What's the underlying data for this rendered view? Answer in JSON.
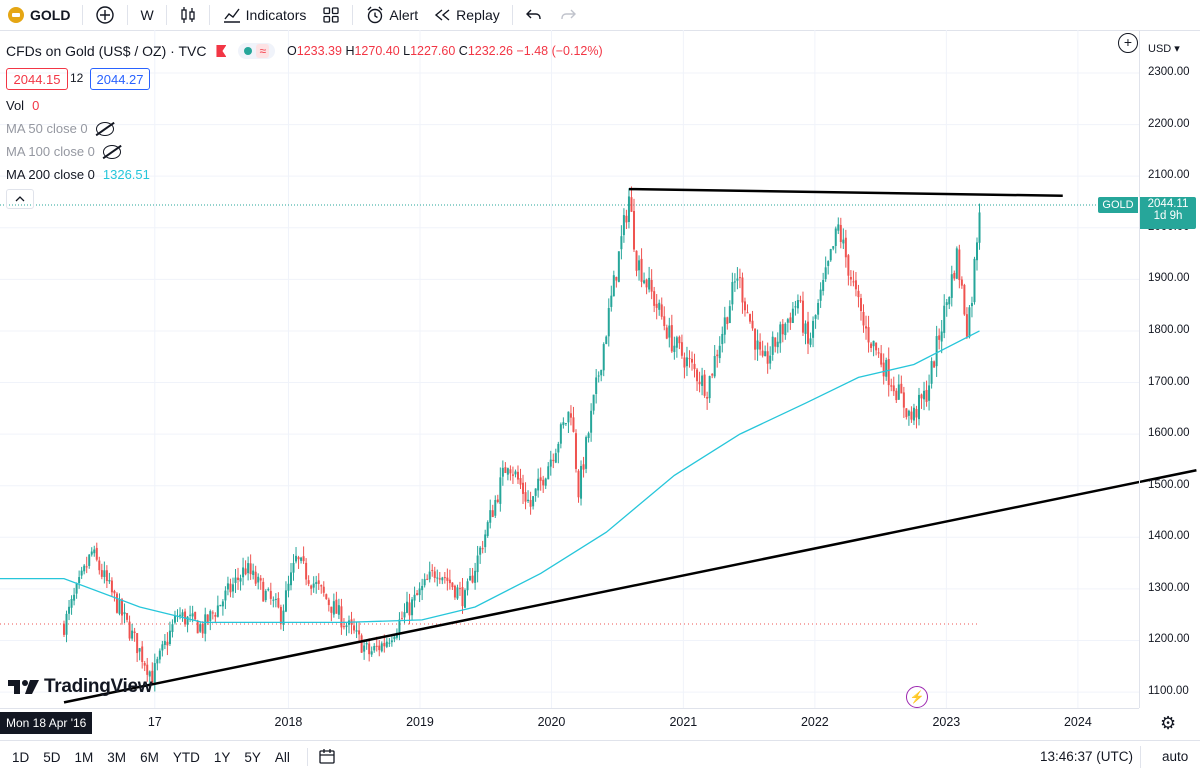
{
  "toolbar": {
    "symbol": "GOLD",
    "interval": "W",
    "indicators_label": "Indicators",
    "alert_label": "Alert",
    "replay_label": "Replay"
  },
  "legend": {
    "title": "CFDs on Gold (US$ / OZ) · TVC",
    "o_label": "O",
    "o_value": "1233.39",
    "h_label": "H",
    "h_value": "1270.40",
    "l_label": "L",
    "l_value": "1227.60",
    "c_label": "C",
    "c_value": "1232.26",
    "change": "−1.48 (−0.12%)",
    "bid": "2044.15",
    "spread": "12",
    "ask": "2044.27"
  },
  "indicators": {
    "vol_label": "Vol",
    "vol_value": "0",
    "ma50_label": "MA 50 close 0",
    "ma100_label": "MA 100 close 0",
    "ma200_label": "MA 200 close 0",
    "ma200_value": "1326.51"
  },
  "price_axis": {
    "currency": "USD",
    "ticks": [
      "2300.00",
      "2200.00",
      "2100.00",
      "2000.00",
      "1900.00",
      "1800.00",
      "1700.00",
      "1600.00",
      "1500.00",
      "1400.00",
      "1300.00",
      "1200.00",
      "1100.00"
    ],
    "last_symbol": "GOLD",
    "last_price": "2044.11",
    "countdown": "1d 9h"
  },
  "time_axis": {
    "ticks": [
      "17",
      "2018",
      "2019",
      "2020",
      "2021",
      "2022",
      "2023",
      "2024"
    ],
    "crosshair_label": "Mon 18 Apr '16"
  },
  "bottom": {
    "ranges": [
      "1D",
      "5D",
      "1M",
      "3M",
      "6M",
      "YTD",
      "1Y",
      "5Y",
      "All"
    ],
    "clock": "13:46:37 (UTC)",
    "auto_label": "auto"
  },
  "brand": {
    "name": "TradingView"
  },
  "colors": {
    "up": "#26a69a",
    "down": "#ef5350",
    "ma": "#26c6da",
    "accent": "#2962ff"
  },
  "chart_data": {
    "type": "candlestick",
    "interval": "W",
    "ylim": [
      1060,
      2360
    ],
    "anchors": [
      [
        "2016-04-18",
        1230
      ],
      [
        "2016-07-04",
        1370
      ],
      [
        "2016-12-19",
        1130
      ],
      [
        "2017-02-27",
        1250
      ],
      [
        "2017-05-08",
        1225
      ],
      [
        "2017-09-04",
        1340
      ],
      [
        "2017-12-11",
        1250
      ],
      [
        "2018-01-22",
        1355
      ],
      [
        "2018-08-13",
        1175
      ],
      [
        "2018-09-24",
        1195
      ],
      [
        "2019-02-18",
        1340
      ],
      [
        "2019-05-06",
        1280
      ],
      [
        "2019-09-02",
        1550
      ],
      [
        "2019-11-04",
        1460
      ],
      [
        "2020-02-24",
        1650
      ],
      [
        "2020-03-16",
        1490
      ],
      [
        "2020-08-03",
        2060
      ],
      [
        "2020-08-24",
        1940
      ],
      [
        "2020-11-30",
        1780
      ],
      [
        "2021-03-08",
        1690
      ],
      [
        "2021-05-31",
        1910
      ],
      [
        "2021-08-09",
        1730
      ],
      [
        "2021-11-15",
        1860
      ],
      [
        "2021-12-13",
        1770
      ],
      [
        "2022-03-07",
        2000
      ],
      [
        "2022-05-16",
        1810
      ],
      [
        "2022-09-26",
        1630
      ],
      [
        "2022-11-07",
        1680
      ],
      [
        "2023-01-30",
        1945
      ],
      [
        "2023-02-27",
        1810
      ],
      [
        "2023-03-13",
        1870
      ],
      [
        "2023-04-03",
        2044
      ]
    ],
    "ma200": [
      [
        "2016-04-18",
        1320
      ],
      [
        "2016-11-14",
        1265
      ],
      [
        "2017-05-08",
        1235
      ],
      [
        "2018-06-04",
        1235
      ],
      [
        "2019-01-07",
        1240
      ],
      [
        "2019-06-03",
        1265
      ],
      [
        "2019-12-02",
        1330
      ],
      [
        "2020-06-01",
        1410
      ],
      [
        "2020-12-07",
        1520
      ],
      [
        "2021-06-07",
        1600
      ],
      [
        "2021-12-06",
        1660
      ],
      [
        "2022-05-02",
        1710
      ],
      [
        "2022-10-03",
        1735
      ],
      [
        "2023-04-03",
        1800
      ]
    ],
    "trendlines": [
      {
        "from": [
          "2020-08-03",
          2075
        ],
        "to": [
          "2023-11-20",
          2062
        ]
      },
      {
        "from": [
          "2016-04-18",
          1080
        ],
        "to": [
          "2024-11-25",
          1530
        ]
      }
    ],
    "hlines": [
      {
        "from": "2016-04-18",
        "to": "2023-04-03",
        "price": 1232
      }
    ]
  }
}
